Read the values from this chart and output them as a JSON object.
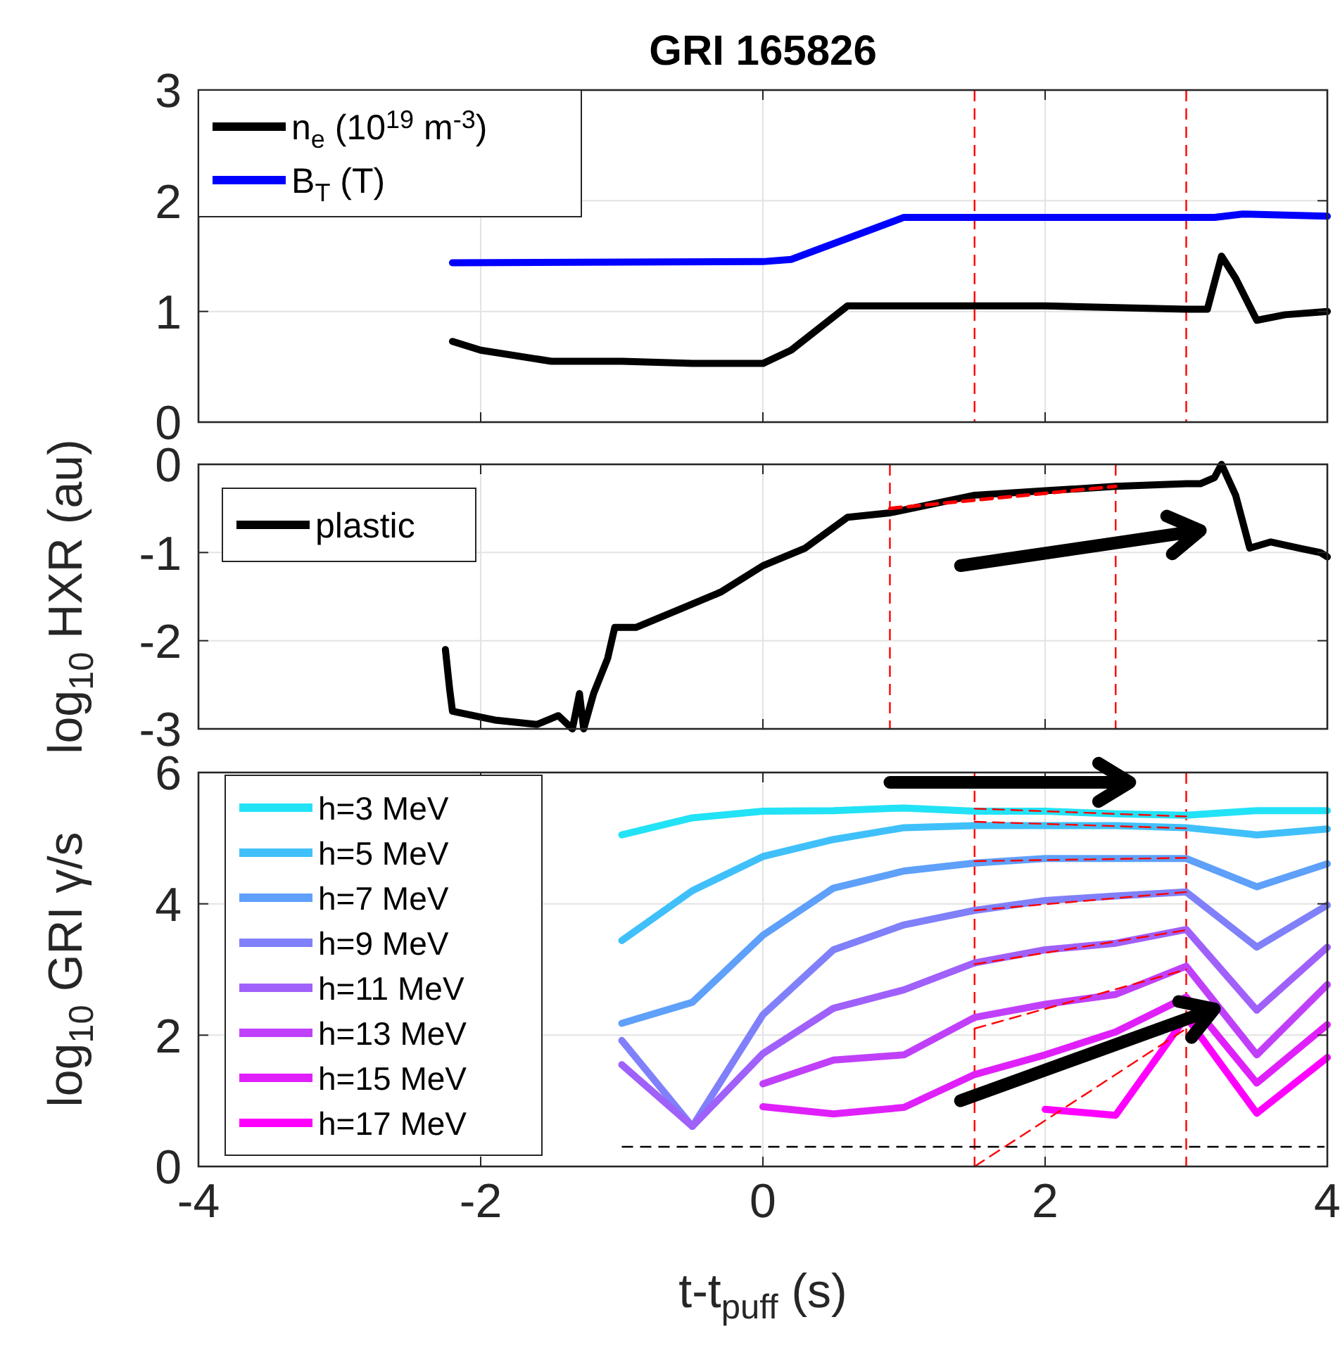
{
  "chart_data": [
    {
      "type": "line",
      "title": "GRI 165826",
      "xlim": [
        -4,
        4
      ],
      "xticks": [
        -4,
        -2,
        0,
        2,
        4
      ],
      "ylim": [
        0,
        3
      ],
      "yticks": [
        0,
        1,
        2,
        3
      ],
      "tick_labels": "y",
      "grid": true,
      "legend": "top left",
      "series": [
        {
          "name": "n$_{e}$ (10$^{19}$ m$^{-3}$)",
          "color": "#000000",
          "x": [
            -2.2,
            -2,
            -1.5,
            -1,
            -0.5,
            0,
            0.2,
            0.6,
            1,
            2,
            3,
            3.15,
            3.25,
            3.35,
            3.5,
            3.7,
            4
          ],
          "values": [
            0.73,
            0.65,
            0.55,
            0.55,
            0.53,
            0.53,
            0.65,
            1.05,
            1.05,
            1.05,
            1.02,
            1.02,
            1.5,
            1.3,
            0.92,
            0.97,
            1.0
          ]
        },
        {
          "name": "B$_{T}$ (T)",
          "color": "#0000ff",
          "x": [
            -2.2,
            0,
            0.2,
            1,
            3.2,
            3.4,
            4
          ],
          "values": [
            1.44,
            1.45,
            1.47,
            1.85,
            1.85,
            1.88,
            1.86
          ]
        }
      ],
      "ref_lines": [
        {
          "axis": "x",
          "value": 1.5,
          "color": "#ff0000",
          "line_style": "dashed"
        },
        {
          "axis": "x",
          "value": 3,
          "color": "#ff0000",
          "line_style": "dashed"
        }
      ]
    },
    {
      "type": "line",
      "ylabel": "log$_{10}$ HXR (au)",
      "xlim": [
        -4,
        4
      ],
      "xticks": [
        -4,
        -2,
        0,
        2,
        4
      ],
      "ylim": [
        -3,
        0
      ],
      "yticks": [
        -3,
        -2,
        -1,
        0
      ],
      "tick_labels": "y",
      "grid": true,
      "legend": "top left",
      "series": [
        {
          "name": "plastic",
          "color": "#000000",
          "x": [
            -2.25,
            -2.22,
            -2.2,
            -1.9,
            -1.6,
            -1.45,
            -1.35,
            -1.3,
            -1.27,
            -1.2,
            -1.1,
            -1.05,
            -0.9,
            -0.6,
            -0.3,
            0,
            0.3,
            0.6,
            0.9,
            1.5,
            2,
            2.5,
            3,
            3.1,
            3.2,
            3.25,
            3.35,
            3.45,
            3.6,
            3.8,
            3.95,
            4
          ],
          "values": [
            -2.1,
            -2.55,
            -2.8,
            -2.9,
            -2.95,
            -2.85,
            -3,
            -2.6,
            -3,
            -2.6,
            -2.2,
            -1.85,
            -1.85,
            -1.65,
            -1.45,
            -1.15,
            -0.95,
            -0.6,
            -0.55,
            -0.35,
            -0.3,
            -0.25,
            -0.22,
            -0.22,
            -0.15,
            0,
            -0.35,
            -0.95,
            -0.88,
            -0.95,
            -1,
            -1.05
          ]
        },
        {
          "color": "#ff0000",
          "line_style": "dashed",
          "x": [
            0.9,
            2.5
          ],
          "values": [
            -0.5,
            -0.25
          ]
        }
      ],
      "ref_lines": [
        {
          "axis": "x",
          "value": 0.9,
          "color": "#ff0000",
          "line_style": "dashed"
        },
        {
          "axis": "x",
          "value": 2.5,
          "color": "#ff0000",
          "line_style": "dashed"
        }
      ]
    },
    {
      "type": "line",
      "xlabel": "t-t$_{puff}$ (s)",
      "ylabel": "log$_{10}$ GRI γ/s",
      "xlim": [
        -4,
        4
      ],
      "xticks": [
        -4,
        -2,
        0,
        2,
        4
      ],
      "ylim": [
        0,
        6
      ],
      "yticks": [
        0,
        2,
        4,
        6
      ],
      "grid": true,
      "legend": "left",
      "series": [
        {
          "name": "h=3 MeV",
          "color": "#22e2f6",
          "x": [
            -1,
            -0.5,
            0,
            0.5,
            1,
            1.5,
            2,
            2.5,
            3,
            3.5,
            4
          ],
          "values": [
            5.05,
            5.31,
            5.41,
            5.42,
            5.46,
            5.41,
            5.41,
            5.37,
            5.35,
            5.42,
            5.42
          ]
        },
        {
          "name": "h=5 MeV",
          "color": "#40c0fa",
          "x": [
            -1,
            -0.5,
            0,
            0.5,
            1,
            1.5,
            2,
            2.5,
            3,
            3.5,
            4
          ],
          "values": [
            3.44,
            4.2,
            4.72,
            4.98,
            5.16,
            5.19,
            5.19,
            5.19,
            5.16,
            5.05,
            5.14
          ]
        },
        {
          "name": "h=7 MeV",
          "color": "#5ea0fa",
          "x": [
            -1,
            -0.5,
            0,
            0.5,
            1,
            1.5,
            2,
            2.5,
            3,
            3.5,
            4
          ],
          "values": [
            2.18,
            2.5,
            3.52,
            4.24,
            4.5,
            4.62,
            4.69,
            4.69,
            4.69,
            4.26,
            4.61
          ]
        },
        {
          "name": "h=9 MeV",
          "color": "#8080fa",
          "x": [
            -1,
            -0.5,
            0,
            0.5,
            1,
            1.5,
            2,
            2.5,
            3,
            3.5,
            4
          ],
          "values": [
            1.92,
            0.61,
            2.31,
            3.3,
            3.68,
            3.9,
            4.05,
            4.12,
            4.18,
            3.34,
            3.98
          ]
        },
        {
          "name": "h=11 MeV",
          "color": "#a060fa",
          "x": [
            -1,
            -0.5,
            0,
            0.5,
            1,
            1.5,
            2,
            2.5,
            3,
            3.5,
            4
          ],
          "values": [
            1.55,
            0.61,
            1.72,
            2.41,
            2.69,
            3.1,
            3.3,
            3.4,
            3.61,
            2.38,
            3.34
          ]
        },
        {
          "name": "h=13 MeV",
          "color": "#c040fa",
          "x": [
            0,
            0.5,
            1,
            1.5,
            2,
            2.5,
            3,
            3.5,
            4
          ],
          "values": [
            1.26,
            1.62,
            1.7,
            2.27,
            2.47,
            2.62,
            3.05,
            1.7,
            2.77
          ]
        },
        {
          "name": "h=15 MeV",
          "color": "#e020fa",
          "x": [
            0,
            0.5,
            1,
            1.5,
            2,
            2.5,
            3,
            3.5,
            4
          ],
          "values": [
            0.91,
            0.8,
            0.9,
            1.4,
            1.7,
            2.05,
            2.58,
            1.27,
            2.16
          ]
        },
        {
          "name": "h=17 MeV",
          "color": "#ff00ff",
          "x": [
            2,
            2.5,
            3,
            3.5,
            4
          ],
          "values": [
            0.87,
            0.78,
            2.28,
            0.81,
            1.66
          ]
        },
        {
          "color": "#ff0000",
          "line_style": "dashed",
          "x": [
            1.5,
            3
          ],
          "values": [
            5.45,
            5.33
          ]
        },
        {
          "color": "#ff0000",
          "line_style": "dashed",
          "x": [
            1.5,
            3
          ],
          "values": [
            5.25,
            5.15
          ]
        },
        {
          "color": "#ff0000",
          "line_style": "dashed",
          "x": [
            1.5,
            3
          ],
          "values": [
            4.65,
            4.7
          ]
        },
        {
          "color": "#ff0000",
          "line_style": "dashed",
          "x": [
            1.5,
            3
          ],
          "values": [
            3.9,
            4.18
          ]
        },
        {
          "color": "#ff0000",
          "line_style": "dashed",
          "x": [
            1.5,
            3
          ],
          "values": [
            3.08,
            3.6
          ]
        },
        {
          "color": "#ff0000",
          "line_style": "dashed",
          "x": [
            1.5,
            3
          ],
          "values": [
            2.1,
            3.0
          ]
        },
        {
          "color": "#ff0000",
          "line_style": "dashed",
          "x": [
            1.5,
            3
          ],
          "values": [
            0,
            2.1
          ]
        }
      ],
      "ref_lines": [
        {
          "axis": "x",
          "value": 1.5,
          "color": "#ff0000",
          "line_style": "dashed"
        },
        {
          "axis": "x",
          "value": 3,
          "color": "#ff0000",
          "line_style": "dashed"
        },
        {
          "axis": "y",
          "value": 0.3,
          "color": "#000000",
          "line_style": "dashed"
        }
      ]
    }
  ]
}
